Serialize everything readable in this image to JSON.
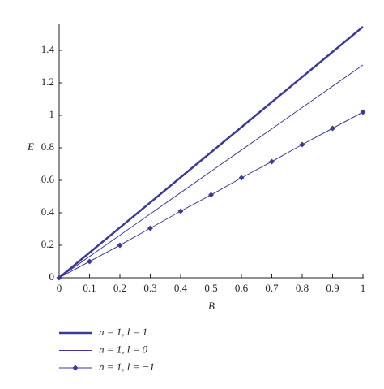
{
  "chart_data": {
    "type": "line",
    "xlabel": "B",
    "ylabel": "E",
    "x": [
      0,
      0.1,
      0.2,
      0.3,
      0.4,
      0.5,
      0.6,
      0.7,
      0.8,
      0.9,
      1
    ],
    "series": [
      {
        "name": "n = 1, l = 1",
        "color": "#3a3a98",
        "linewidth": 2.5,
        "marker": null,
        "values": [
          0,
          0.1545,
          0.309,
          0.4635,
          0.618,
          0.7725,
          0.927,
          1.0815,
          1.236,
          1.3905,
          1.545
        ]
      },
      {
        "name": "n = 1, l = 0",
        "color": "#3a3a98",
        "linewidth": 1,
        "marker": null,
        "values": [
          0,
          0.131,
          0.262,
          0.393,
          0.524,
          0.655,
          0.786,
          0.917,
          1.048,
          1.179,
          1.31
        ]
      },
      {
        "name": "n = 1, l = −1",
        "color": "#3a3a98",
        "linewidth": 1,
        "marker": "diamond",
        "values": [
          0,
          0.1,
          0.2,
          0.305,
          0.41,
          0.51,
          0.615,
          0.715,
          0.82,
          0.92,
          1.02
        ]
      }
    ],
    "xlim": [
      0,
      1
    ],
    "ylim": [
      0,
      1.56
    ],
    "xticks": [
      0,
      0.1,
      0.2,
      0.3,
      0.4,
      0.5,
      0.6,
      0.7,
      0.8,
      0.9,
      1
    ],
    "yticks": [
      0,
      0.2,
      0.4,
      0.6,
      0.8,
      1,
      1.2,
      1.4
    ],
    "legend": "bottom-left"
  }
}
